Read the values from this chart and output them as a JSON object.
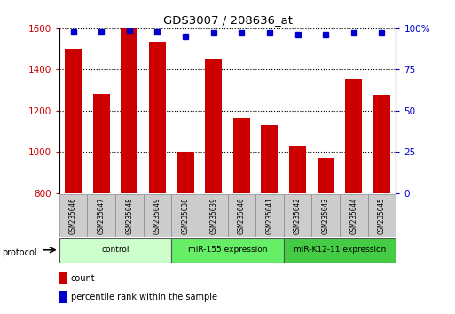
{
  "title": "GDS3007 / 208636_at",
  "samples": [
    "GSM235046",
    "GSM235047",
    "GSM235048",
    "GSM235049",
    "GSM235038",
    "GSM235039",
    "GSM235040",
    "GSM235041",
    "GSM235042",
    "GSM235043",
    "GSM235044",
    "GSM235045"
  ],
  "counts": [
    1500,
    1280,
    1600,
    1535,
    1000,
    1450,
    1165,
    1130,
    1025,
    970,
    1355,
    1275
  ],
  "percentile_ranks": [
    98,
    98,
    99,
    98,
    95,
    97,
    97,
    97,
    96,
    96,
    97,
    97
  ],
  "groups": [
    {
      "label": "control",
      "start": 0,
      "end": 4,
      "light_color": "#ccffcc",
      "dark_color": "#ccffcc"
    },
    {
      "label": "miR-155 expression",
      "start": 4,
      "end": 8,
      "light_color": "#66ee66",
      "dark_color": "#44cc44"
    },
    {
      "label": "miR-K12-11 expression",
      "start": 8,
      "end": 12,
      "light_color": "#44cc44",
      "dark_color": "#33bb33"
    }
  ],
  "bar_color": "#cc0000",
  "dot_color": "#0000cc",
  "ylim_left": [
    800,
    1600
  ],
  "ylim_right": [
    0,
    100
  ],
  "yticks_left": [
    800,
    1000,
    1200,
    1400,
    1600
  ],
  "yticks_right": [
    0,
    25,
    50,
    75,
    100
  ],
  "background_color": "#ffffff"
}
